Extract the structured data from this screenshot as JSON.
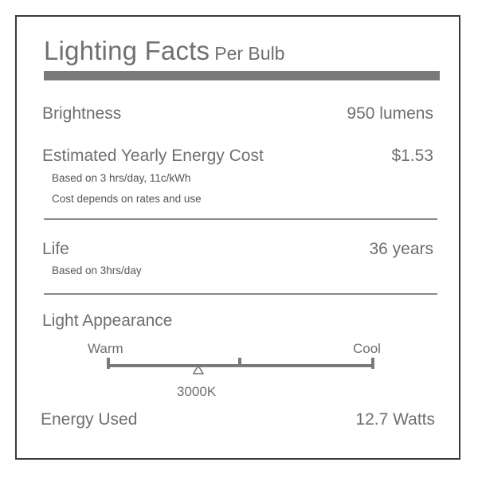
{
  "title": {
    "main": "Lighting Facts",
    "sub": "Per Bulb"
  },
  "brightness": {
    "label": "Brightness",
    "value": "950 lumens"
  },
  "energy_cost": {
    "label": "Estimated Yearly Energy Cost",
    "value": "$1.53",
    "note_1": "Based on 3 hrs/day, 11c/kWh",
    "note_2": "Cost depends on rates and use"
  },
  "life": {
    "label": "Life",
    "value": "36 years",
    "note": "Based on 3hrs/day"
  },
  "light_appearance": {
    "label": "Light Appearance",
    "warm_label": "Warm",
    "cool_label": "Cool",
    "marker_label": "3000K",
    "marker_position_fraction": 0.34
  },
  "energy_used": {
    "label": "Energy Used",
    "value": "12.7 Watts"
  },
  "colors": {
    "text": "#6f6f6f",
    "bar": "#7a7a7a",
    "border": "#3a3a3a"
  }
}
